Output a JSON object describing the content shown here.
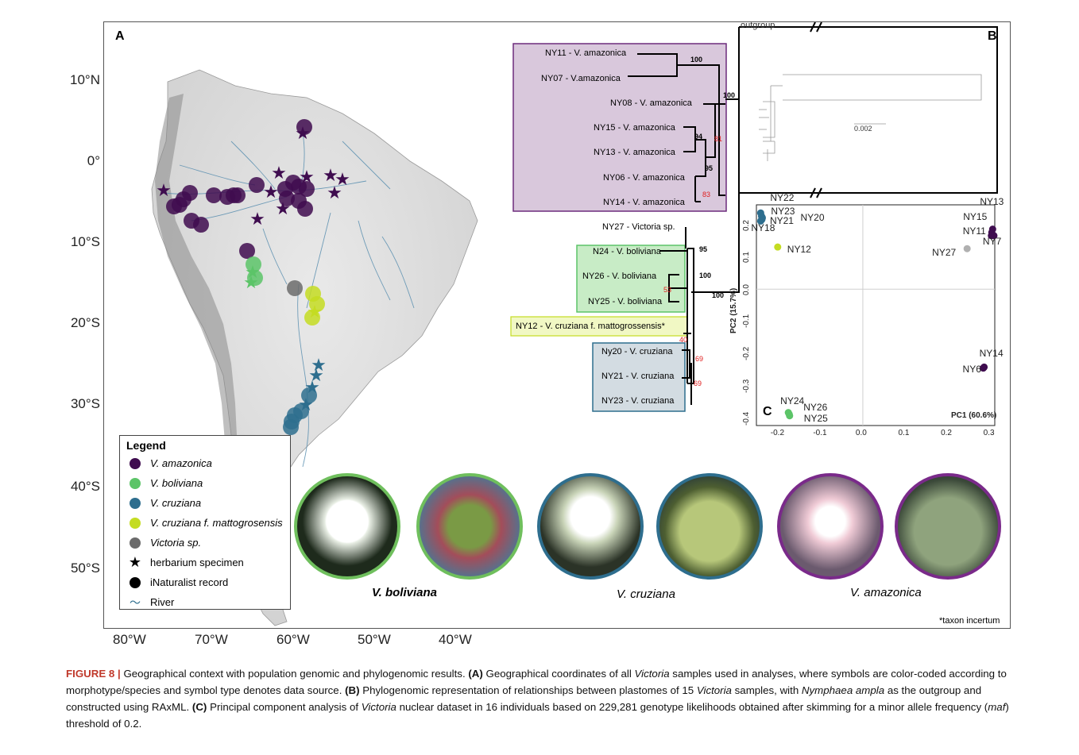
{
  "panels": {
    "a": "A",
    "b": "B",
    "c": "C"
  },
  "map": {
    "lat_ticks": [
      "10°N",
      "0°",
      "10°S",
      "20°S",
      "30°S",
      "40°S",
      "50°S"
    ],
    "lon_ticks": [
      "80°W",
      "70°W",
      "60°W",
      "50°W",
      "40°W"
    ]
  },
  "legend": {
    "title": "Legend",
    "items": [
      {
        "label": "V. amazonica",
        "italic": true,
        "color": "#3f0c4f",
        "shape": "dot"
      },
      {
        "label": "V. boliviana",
        "italic": true,
        "color": "#5cc468",
        "shape": "dot"
      },
      {
        "label": "V. cruziana",
        "italic": true,
        "color": "#2e6e8e",
        "shape": "dot"
      },
      {
        "label": "V. cruziana f. mattogrosensis",
        "italic": true,
        "color": "#c4dc22",
        "shape": "dot"
      },
      {
        "label": "Victoria sp.",
        "italic": true,
        "color": "#6b6b6b",
        "shape": "dot"
      },
      {
        "label": "herbarium specimen",
        "italic": false,
        "color": "#000000",
        "shape": "star"
      },
      {
        "label": "iNaturalist record",
        "italic": false,
        "color": "#000000",
        "shape": "dot"
      },
      {
        "label": "River",
        "italic": false,
        "color": "#2f6f8f",
        "shape": "river"
      }
    ]
  },
  "tree": {
    "outgroup": "outgroup",
    "scale_label": "0.002",
    "tips": [
      "NY11 - V. amazonica",
      "NY07 - V.amazonica",
      "NY08 - V. amazonica",
      "NY15 - V. amazonica",
      "NY13 - V. amazonica",
      "NY06 - V. amazonica",
      "NY14 - V. amazonica",
      "NY27 - Victoria sp.",
      "N24 - V. boliviana",
      "NY26 - V. boliviana",
      "NY25 - V. boliviana",
      "NY12 - V. cruziana f. mattogrossensis*",
      "Ny20 - V. cruziana",
      "NY21 - V. cruziana",
      "NY23 - V. cruziana"
    ],
    "support_black": [
      "100",
      "100",
      "94",
      "95",
      "95",
      "100",
      "100",
      "100"
    ],
    "support_red": [
      "81",
      "83",
      "53",
      "40",
      "69",
      "69"
    ],
    "colors": {
      "amazonica": "#d9c8dc",
      "boliviana": "#c8ecc6",
      "cruziana": "#d3dce2",
      "mattogrossensis": "#f1f8c4"
    }
  },
  "pca": {
    "xlabel": "PC1 (60.6%)",
    "ylabel": "PC2 (15.7%)",
    "x_ticks": [
      "-0.2",
      "-0.1",
      "0.0",
      "0.1",
      "0.2",
      "0.3"
    ],
    "y_ticks": [
      "0.2",
      "0.1",
      "0.0",
      "-0.1",
      "-0.2",
      "-0.3",
      "-0.4"
    ]
  },
  "chart_data": {
    "type": "scatter",
    "xlabel": "PC1 (60.6%)",
    "ylabel": "PC2 (15.7%)",
    "xlim": [
      -0.25,
      0.31
    ],
    "ylim": [
      -0.42,
      0.26
    ],
    "points": [
      {
        "label": "NY22",
        "x": -0.24,
        "y": 0.235,
        "color": "#2e6e8e"
      },
      {
        "label": "NY23",
        "x": -0.238,
        "y": 0.225,
        "color": "#2e6e8e"
      },
      {
        "label": "NY21",
        "x": -0.237,
        "y": 0.215,
        "color": "#2e6e8e"
      },
      {
        "label": "NY20",
        "x": -0.236,
        "y": 0.22,
        "color": "#2e6e8e"
      },
      {
        "label": "NY18",
        "x": -0.24,
        "y": 0.21,
        "color": "#2e6e8e"
      },
      {
        "label": "NY12",
        "x": -0.2,
        "y": 0.13,
        "color": "#c4dc22"
      },
      {
        "label": "NY13",
        "x": 0.305,
        "y": 0.185,
        "color": "#3f0c4f"
      },
      {
        "label": "NY15",
        "x": 0.303,
        "y": 0.175,
        "color": "#3f0c4f"
      },
      {
        "label": "NY11",
        "x": 0.302,
        "y": 0.165,
        "color": "#3f0c4f"
      },
      {
        "label": "NY7",
        "x": 0.308,
        "y": 0.165,
        "color": "#3f0c4f"
      },
      {
        "label": "NY27",
        "x": 0.245,
        "y": 0.125,
        "color": "#b0b0b0"
      },
      {
        "label": "NY14",
        "x": 0.285,
        "y": -0.24,
        "color": "#3f0c4f"
      },
      {
        "label": "NY6",
        "x": 0.283,
        "y": -0.243,
        "color": "#3f0c4f"
      },
      {
        "label": "NY24",
        "x": -0.175,
        "y": -0.38,
        "color": "#5cc468"
      },
      {
        "label": "NY26",
        "x": -0.173,
        "y": -0.385,
        "color": "#5cc468"
      },
      {
        "label": "NY25",
        "x": -0.172,
        "y": -0.39,
        "color": "#5cc468"
      }
    ]
  },
  "photos": {
    "labels": [
      "V. boliviana",
      "V. cruziana",
      "V. amazonica"
    ],
    "border_colors": [
      "#6fbf5d",
      "#6fbf5d",
      "#2e6e8e",
      "#2e6e8e",
      "#7a2a8a",
      "#7a2a8a"
    ]
  },
  "footnote": "*taxon incertum",
  "caption": {
    "fig": "FIGURE 8 |",
    "t1": " Geographical context with population genomic and phylogenomic results. ",
    "a": "(A)",
    "t2": " Geographical coordinates of all ",
    "vic1": "Victoria",
    "t3": " samples used in analyses, where symbols are color-coded according to morphotype/species and symbol type denotes data source. ",
    "b": "(B)",
    "t4": " Phylogenomic representation of relationships between plastomes of 15 ",
    "vic2": "Victoria",
    "t5": " samples, with ",
    "nym": "Nymphaea ampla",
    "t6": " as the outgroup and constructed using RAxML. ",
    "c": "(C)",
    "t7": " Principal component analysis of ",
    "vic3": "Victoria",
    "t8": " nuclear dataset in 16 individuals based on 229,281 genotype likelihoods obtained after skimming for a minor allele frequency (",
    "maf": "maf",
    "t9": ") threshold of 0.2."
  }
}
